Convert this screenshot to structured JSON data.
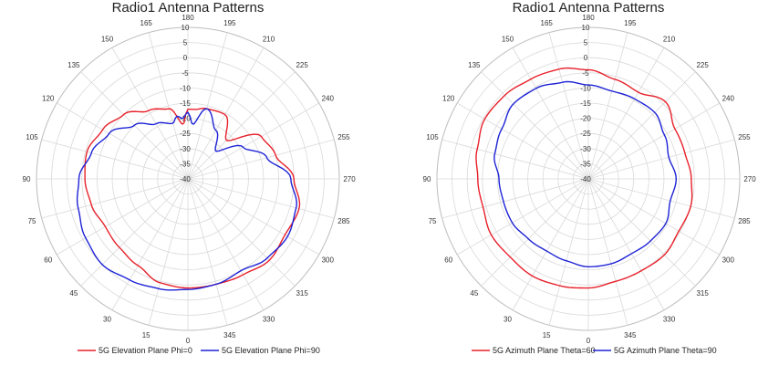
{
  "colors": {
    "red": "#e8202a",
    "blue": "#1d22d6",
    "grid": "#d9d9d9"
  },
  "chart_data": [
    {
      "type": "polar-line",
      "title": "Radio1 Antenna Patterns",
      "rlim": [
        -40,
        10
      ],
      "rticks": [
        10,
        5,
        0,
        -5,
        -10,
        -15,
        -20,
        -25,
        -30,
        -35,
        -40
      ],
      "angle_ticks": [
        "0",
        "15",
        "30",
        "45",
        "60",
        "75",
        "90",
        "105",
        "120",
        "135",
        "150",
        "165",
        "180",
        "195",
        "210",
        "225",
        "240",
        "255",
        "270",
        "285",
        "300",
        "315",
        "330",
        "345"
      ],
      "grid": true,
      "legend": "bottom",
      "series": [
        {
          "name": "5G Elevation Plane Phi=0",
          "color": "#e8202a",
          "angles": [
            0,
            15,
            30,
            45,
            60,
            75,
            90,
            105,
            120,
            135,
            150,
            165,
            175,
            180,
            185,
            195,
            210,
            225,
            240,
            255,
            270,
            285,
            300,
            315,
            330,
            345
          ],
          "values": [
            -4,
            -4.5,
            -7,
            -8,
            -8.5,
            -7,
            -6,
            -5.5,
            -7.5,
            -10,
            -14,
            -16,
            -22,
            -17,
            -17,
            -16,
            -15.5,
            -22,
            -12,
            -10,
            -5,
            -2,
            -3,
            -2,
            -3.5,
            -4
          ]
        },
        {
          "name": "5G Elevation Plane Phi=90",
          "color": "#1d22d6",
          "angles": [
            0,
            15,
            30,
            45,
            60,
            75,
            90,
            105,
            120,
            135,
            150,
            165,
            170,
            175,
            180,
            185,
            195,
            210,
            225,
            240,
            255,
            270,
            285,
            300,
            315,
            330,
            345
          ],
          "values": [
            -3.5,
            -2.5,
            -1.5,
            0,
            -1,
            -2.5,
            -4,
            -7,
            -10,
            -15,
            -19,
            -21,
            -19,
            -20,
            -18,
            -22,
            -16,
            -21.5,
            -27,
            -19,
            -13,
            -6,
            -3,
            -2,
            -3,
            -5,
            -4
          ]
        }
      ]
    },
    {
      "type": "polar-line",
      "title": "Radio1 Antenna Patterns",
      "rlim": [
        -40,
        10
      ],
      "rticks": [
        10,
        5,
        0,
        -5,
        -10,
        -15,
        -20,
        -25,
        -30,
        -35,
        -40
      ],
      "angle_ticks": [
        "0",
        "15",
        "30",
        "45",
        "60",
        "75",
        "90",
        "105",
        "120",
        "135",
        "150",
        "165",
        "180",
        "195",
        "210",
        "225",
        "240",
        "255",
        "270",
        "285",
        "300",
        "315",
        "330",
        "345"
      ],
      "grid": true,
      "legend": "bottom",
      "series": [
        {
          "name": "5G Azimuth Plane Theta=60",
          "color": "#e8202a",
          "angles": [
            0,
            15,
            30,
            45,
            60,
            75,
            90,
            105,
            120,
            135,
            150,
            165,
            180,
            195,
            210,
            225,
            240,
            255,
            270,
            285,
            300,
            315,
            330,
            345
          ],
          "values": [
            -4,
            -3.5,
            -3,
            -3.5,
            -3,
            -4,
            -3.5,
            -2,
            -0.5,
            -1,
            -2,
            -2.5,
            -4,
            -6,
            -7,
            -4,
            -7,
            -7,
            -6,
            -5,
            -5.5,
            -4.5,
            -5,
            -5
          ]
        },
        {
          "name": "5G Azimuth Plane Theta=90",
          "color": "#1d22d6",
          "angles": [
            0,
            15,
            30,
            45,
            60,
            75,
            90,
            105,
            120,
            135,
            150,
            165,
            180,
            195,
            210,
            225,
            240,
            255,
            270,
            285,
            300,
            315,
            330,
            345
          ],
          "values": [
            -11,
            -12,
            -12.5,
            -12,
            -11,
            -11,
            -10.5,
            -8,
            -7,
            -5,
            -5.5,
            -7,
            -9,
            -10,
            -9.5,
            -9,
            -11,
            -12.5,
            -11,
            -12,
            -10.5,
            -11,
            -11.5,
            -11
          ]
        }
      ]
    }
  ]
}
